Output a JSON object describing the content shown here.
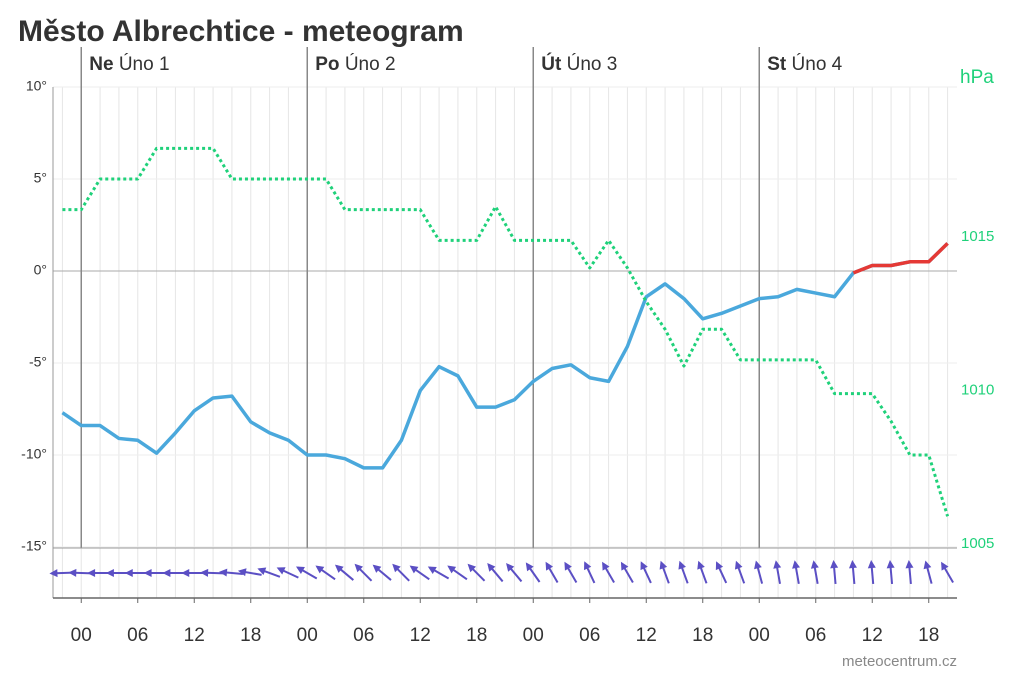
{
  "chart_data": {
    "type": "meteogram",
    "title": "Město Albrechtice - meteogram",
    "source": "meteocentrum.cz",
    "y2_label": "hPa",
    "x": [
      -2,
      0,
      2,
      4,
      6,
      8,
      10,
      12,
      14,
      16,
      18,
      20,
      22,
      24,
      26,
      28,
      30,
      32,
      34,
      36,
      38,
      40,
      42,
      44,
      46,
      48,
      50,
      52,
      54,
      56,
      58,
      60,
      62,
      64,
      66,
      68,
      70,
      72,
      74,
      76,
      78,
      80,
      82,
      84,
      86,
      88,
      90,
      92
    ],
    "xlim": [
      -3,
      93
    ],
    "xticks": [
      {
        "value": 0,
        "label": "00"
      },
      {
        "value": 6,
        "label": "06"
      },
      {
        "value": 12,
        "label": "12"
      },
      {
        "value": 18,
        "label": "18"
      },
      {
        "value": 24,
        "label": "00"
      },
      {
        "value": 30,
        "label": "06"
      },
      {
        "value": 36,
        "label": "12"
      },
      {
        "value": 42,
        "label": "18"
      },
      {
        "value": 48,
        "label": "00"
      },
      {
        "value": 54,
        "label": "06"
      },
      {
        "value": 60,
        "label": "12"
      },
      {
        "value": 66,
        "label": "18"
      },
      {
        "value": 72,
        "label": "00"
      },
      {
        "value": 78,
        "label": "06"
      },
      {
        "value": 84,
        "label": "12"
      },
      {
        "value": 90,
        "label": "18"
      }
    ],
    "days": [
      {
        "value": 0,
        "weekday": "Ne",
        "date": "Úno 1"
      },
      {
        "value": 24,
        "weekday": "Po",
        "date": "Úno 2"
      },
      {
        "value": 48,
        "weekday": "Út",
        "date": "Úno 3"
      },
      {
        "value": 72,
        "weekday": "St",
        "date": "Úno 4"
      }
    ],
    "ylim": [
      -15,
      10
    ],
    "yticks": [
      {
        "value": 10,
        "label": "10°"
      },
      {
        "value": 5,
        "label": "5°"
      },
      {
        "value": 0,
        "label": "0°"
      },
      {
        "value": -5,
        "label": "-5°"
      },
      {
        "value": -10,
        "label": "-10°"
      },
      {
        "value": -15,
        "label": "-15°"
      }
    ],
    "y2lim": [
      1004.9,
      1019.9
    ],
    "y2ticks": [
      1015,
      1010,
      1005
    ],
    "grid": true,
    "series": [
      {
        "color": "#4aa8dc",
        "color_above_zero": "#e53935",
        "axis": "y",
        "values": [
          -7.7,
          -8.4,
          -8.4,
          -9.1,
          -9.2,
          -9.9,
          -8.8,
          -7.6,
          -6.9,
          -6.8,
          -8.2,
          -8.8,
          -9.2,
          -10.0,
          -10.0,
          -10.2,
          -10.7,
          -10.7,
          -9.2,
          -6.5,
          -5.2,
          -5.7,
          -7.4,
          -7.4,
          -7.0,
          -6.0,
          -5.3,
          -5.1,
          -5.8,
          -6.0,
          -4.1,
          -1.4,
          -0.7,
          -1.5,
          -2.6,
          -2.3,
          -1.9,
          -1.5,
          -1.4,
          -1.0,
          -1.2,
          -1.4,
          -0.1,
          0.3,
          0.3,
          0.5,
          0.5,
          1.5
        ]
      },
      {
        "color": "#1fd17a",
        "axis": "y2",
        "dotted": true,
        "values": [
          1015.9,
          1015.9,
          1016.9,
          1016.9,
          1016.9,
          1017.9,
          1017.9,
          1017.9,
          1017.9,
          1016.9,
          1016.9,
          1016.9,
          1016.9,
          1016.9,
          1016.9,
          1015.9,
          1015.9,
          1015.9,
          1015.9,
          1015.9,
          1014.9,
          1014.9,
          1014.9,
          1016.0,
          1014.9,
          1014.9,
          1014.9,
          1014.9,
          1014.0,
          1014.9,
          1014.0,
          1012.9,
          1012.0,
          1010.8,
          1012.0,
          1012.0,
          1011.0,
          1011.0,
          1011.0,
          1011.0,
          1011.0,
          1009.9,
          1009.9,
          1009.9,
          1009.0,
          1007.9,
          1007.9,
          1005.9
        ]
      }
    ],
    "wind": {
      "color": "#5b4fc4",
      "direction": [
        268,
        272,
        270,
        270,
        270,
        270,
        270,
        270,
        272,
        275,
        280,
        290,
        295,
        300,
        305,
        310,
        315,
        310,
        315,
        305,
        300,
        305,
        315,
        320,
        320,
        325,
        330,
        330,
        335,
        330,
        330,
        335,
        340,
        340,
        340,
        335,
        340,
        345,
        350,
        350,
        350,
        355,
        355,
        355,
        355,
        355,
        345,
        330
      ]
    }
  }
}
